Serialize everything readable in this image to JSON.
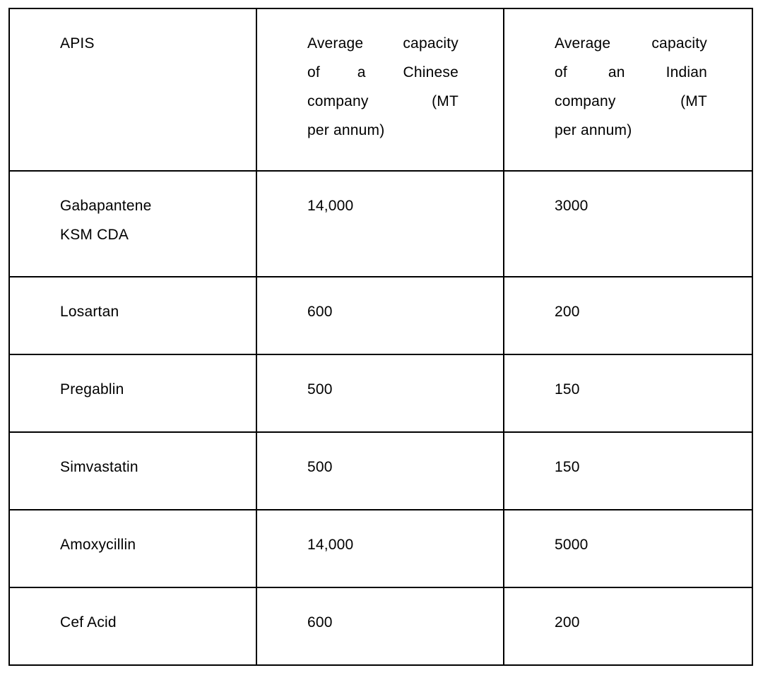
{
  "table": {
    "columns": [
      {
        "label": "APIS",
        "label_lines": [
          "APIS"
        ]
      },
      {
        "label": "Average capacity of a Chinese company (MT per annum)",
        "label_lines": [
          "Average capacity",
          "of a Chinese",
          "company (MT",
          "per annum)"
        ]
      },
      {
        "label": "Average capacity of an Indian company (MT per annum)",
        "label_lines": [
          "Average capacity",
          "of an Indian",
          "company (MT",
          "per annum)"
        ]
      }
    ],
    "rows": [
      {
        "api": "Gabapantene KSM CDA",
        "api_lines": [
          "Gabapantene",
          "KSM CDA"
        ],
        "chinese_capacity": "14,000",
        "indian_capacity": "3000"
      },
      {
        "api": "Losartan",
        "api_lines": [
          "Losartan"
        ],
        "chinese_capacity": "600",
        "indian_capacity": "200"
      },
      {
        "api": "Pregablin",
        "api_lines": [
          "Pregablin"
        ],
        "chinese_capacity": "500",
        "indian_capacity": "150"
      },
      {
        "api": "Simvastatin",
        "api_lines": [
          "Simvastatin"
        ],
        "chinese_capacity": "500",
        "indian_capacity": "150"
      },
      {
        "api": "Amoxycillin",
        "api_lines": [
          "Amoxycillin"
        ],
        "chinese_capacity": "14,000",
        "indian_capacity": "5000"
      },
      {
        "api": "Cef Acid",
        "api_lines": [
          "Cef Acid"
        ],
        "chinese_capacity": "600",
        "indian_capacity": "200"
      }
    ],
    "border_color": "#000000",
    "text_color": "#000000",
    "background_color": "#ffffff"
  }
}
